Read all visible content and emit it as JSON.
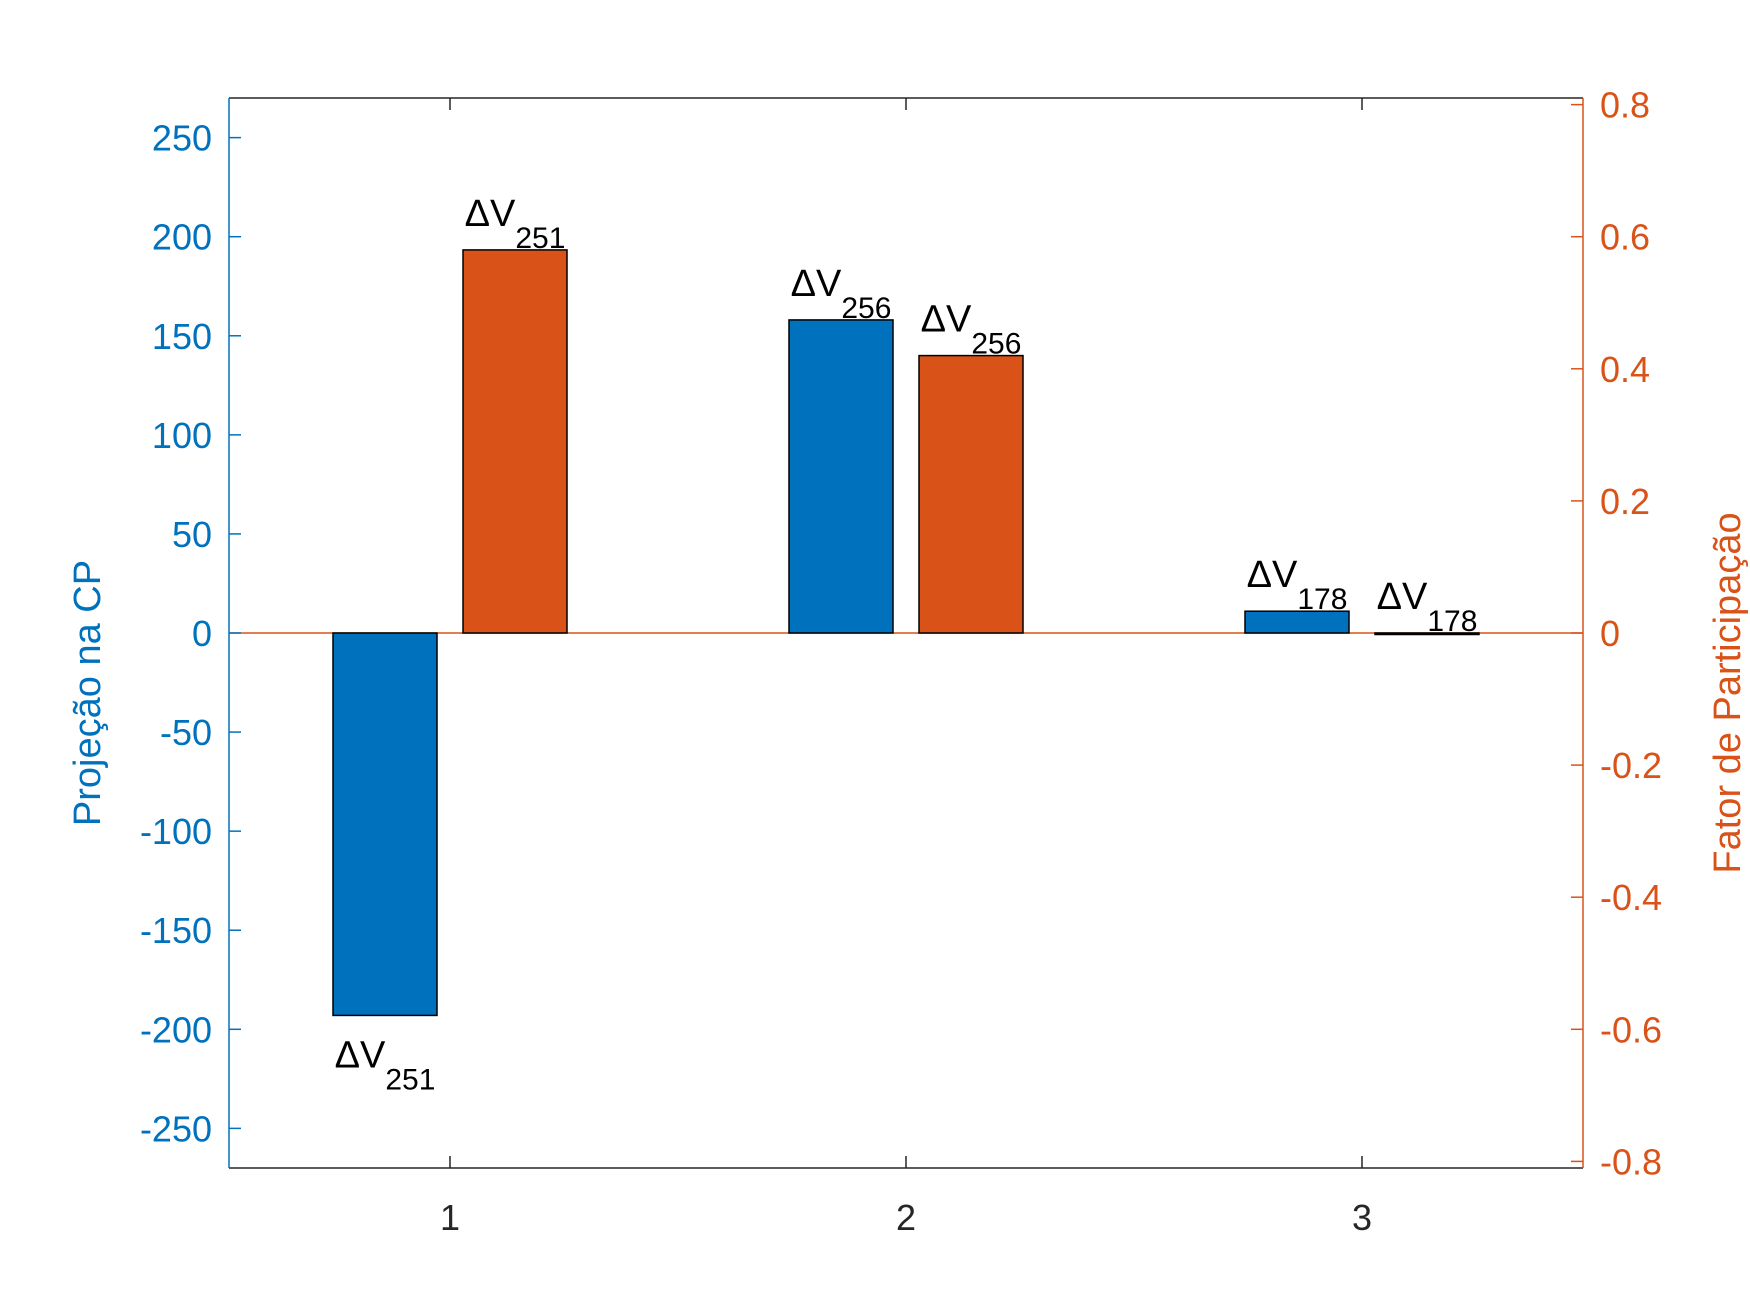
{
  "colors": {
    "left_axis": "#0072BD",
    "right_axis": "#D95319",
    "axes": "#262626",
    "bar_outline": "#000000",
    "label_text": "#000000"
  },
  "chart_data": {
    "type": "bar",
    "categories": [
      "1",
      "2",
      "3"
    ],
    "title": "",
    "xlabel": "",
    "grid": false,
    "legend": "none",
    "left_axis": {
      "label": "Projeção na CP",
      "ylim": [
        -270,
        270
      ],
      "ticks": [
        250,
        200,
        150,
        100,
        50,
        0,
        -50,
        -100,
        -150,
        -200,
        -250
      ],
      "tick_labels": [
        "250",
        "200",
        "150",
        "100",
        "50",
        "0",
        "-50",
        "-100",
        "-150",
        "-200",
        "-250"
      ]
    },
    "right_axis": {
      "label": "Fator de Participação",
      "ylim": [
        -0.81,
        0.81
      ],
      "ticks": [
        0.8,
        0.6,
        0.4,
        0.2,
        0,
        -0.2,
        -0.4,
        -0.6,
        -0.8
      ],
      "tick_labels": [
        "0.8",
        "0.6",
        "0.4",
        "0.2",
        "0",
        "-0.2",
        "-0.4",
        "-0.6",
        "-0.8"
      ]
    },
    "series": [
      {
        "axis": "left",
        "color": "#0072BD",
        "values": [
          -193,
          158,
          11
        ],
        "labels": [
          {
            "main": "ΔV",
            "sub": "251"
          },
          {
            "main": "ΔV",
            "sub": "256"
          },
          {
            "main": "ΔV",
            "sub": "178"
          }
        ]
      },
      {
        "axis": "right",
        "color": "#D95319",
        "values": [
          0.58,
          0.42,
          0.0
        ],
        "labels": [
          {
            "main": "ΔV",
            "sub": "251"
          },
          {
            "main": "ΔV",
            "sub": "256"
          },
          {
            "main": "ΔV",
            "sub": "178"
          }
        ]
      }
    ]
  }
}
